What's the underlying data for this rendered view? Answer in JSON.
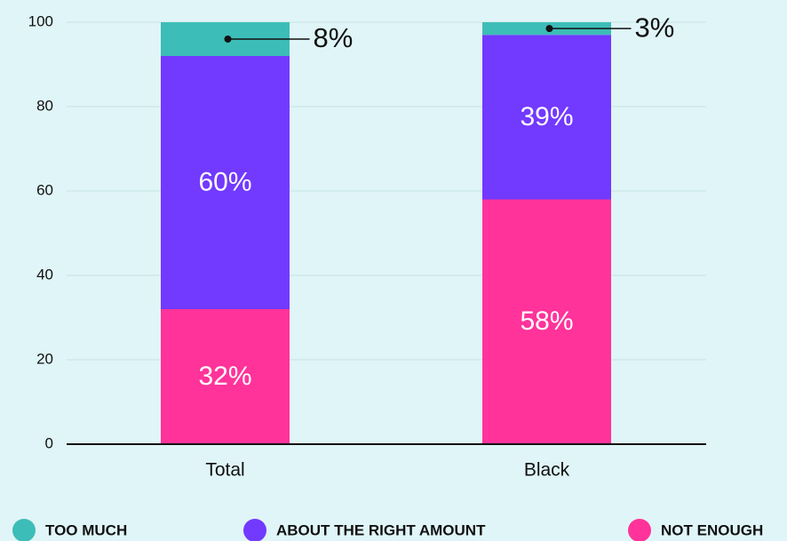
{
  "chart_data": {
    "type": "stacked_bar",
    "categories": [
      "Total",
      "Black"
    ],
    "series": [
      {
        "name": "TOO MUCH",
        "color": "#3dbdb8",
        "values": [
          8,
          3
        ],
        "value_labels": [
          "8%",
          "3%"
        ]
      },
      {
        "name": "ABOUT THE RIGHT AMOUNT",
        "color": "#7239ff",
        "values": [
          60,
          39
        ],
        "value_labels": [
          "60%",
          "39%"
        ]
      },
      {
        "name": "NOT ENOUGH",
        "color": "#ff339a",
        "values": [
          32,
          58
        ],
        "value_labels": [
          "32%",
          "58%"
        ]
      }
    ],
    "ylim": [
      0,
      100
    ],
    "yticks": [
      0,
      20,
      40,
      60,
      80,
      100
    ],
    "grid": true
  }
}
